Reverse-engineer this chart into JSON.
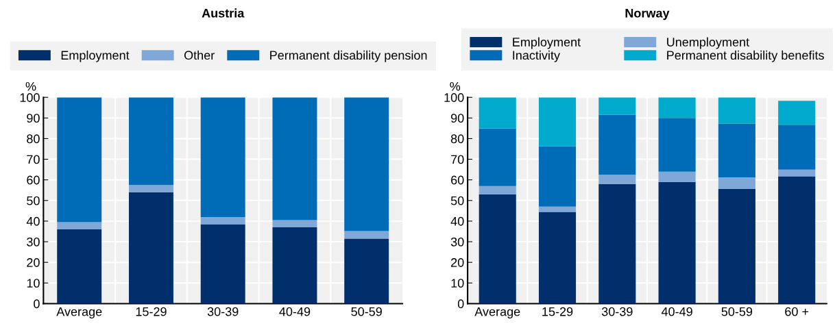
{
  "chart_data": [
    {
      "type": "bar",
      "title": "Austria",
      "ylabel": "%",
      "stacked": true,
      "grid": true,
      "legend": "top",
      "categories": [
        "Average",
        "15-29",
        "30-39",
        "40-49",
        "50-59"
      ],
      "series": [
        {
          "name": "Employment",
          "color": "#002f6c",
          "values": [
            36,
            54,
            38.5,
            37,
            31.5
          ]
        },
        {
          "name": "Other",
          "color": "#7fa8d9",
          "values": [
            3.5,
            3.5,
            3.5,
            3.5,
            3.7
          ]
        },
        {
          "name": "Permanent disability pension",
          "color": "#006bb6",
          "values": [
            60.5,
            42.5,
            58,
            59.5,
            64.8
          ]
        }
      ],
      "ylim": [
        0,
        100
      ],
      "yticks": [
        0,
        10,
        20,
        30,
        40,
        50,
        60,
        70,
        80,
        90,
        100
      ]
    },
    {
      "type": "bar",
      "title": "Norway",
      "ylabel": "%",
      "stacked": true,
      "grid": true,
      "legend": "top",
      "categories": [
        "Average",
        "15-29",
        "30-39",
        "40-49",
        "50-59",
        "60 +"
      ],
      "series": [
        {
          "name": "Employment",
          "color": "#002f6c",
          "values": [
            53,
            44.5,
            58,
            59,
            55.7,
            61.7
          ]
        },
        {
          "name": "Unemployment",
          "color": "#7fa8d9",
          "values": [
            4,
            2.5,
            4.5,
            5,
            5.5,
            3.3
          ]
        },
        {
          "name": "Inactivity",
          "color": "#006bb6",
          "values": [
            28,
            29.3,
            29,
            26,
            26.1,
            21.7
          ]
        },
        {
          "name": "Permanent disability benefits",
          "color": "#00aacc",
          "values": [
            15,
            23.7,
            8.5,
            10,
            12.7,
            11.6
          ]
        }
      ],
      "ylim": [
        0,
        100
      ],
      "yticks": [
        0,
        10,
        20,
        30,
        40,
        50,
        60,
        70,
        80,
        90,
        100
      ]
    }
  ]
}
